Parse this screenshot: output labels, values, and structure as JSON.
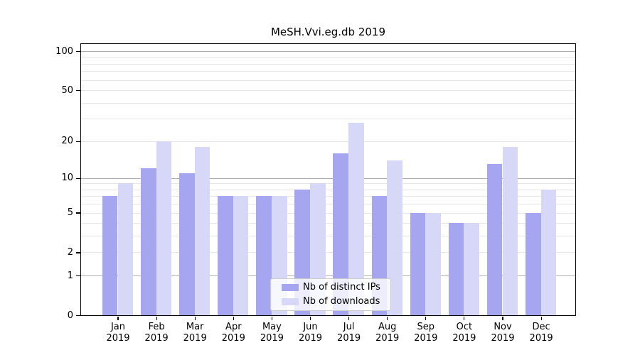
{
  "chart_data": {
    "type": "bar",
    "title": "MeSH.Vvi.eg.db 2019",
    "months": [
      "Jan",
      "Feb",
      "Mar",
      "Apr",
      "May",
      "Jun",
      "Jul",
      "Aug",
      "Sep",
      "Oct",
      "Nov",
      "Dec"
    ],
    "year": "2019",
    "series": [
      {
        "name": "Nb of distinct IPs",
        "color": "#a6a6f0",
        "values": [
          7,
          12,
          11,
          7,
          7,
          8,
          16,
          7,
          5,
          4,
          13,
          5
        ]
      },
      {
        "name": "Nb of downloads",
        "color": "#d7d7f8",
        "values": [
          9,
          20,
          18,
          7,
          7,
          9,
          28,
          14,
          5,
          4,
          18,
          8
        ]
      }
    ],
    "y_scale": "log1p",
    "y_ticks": [
      0,
      1,
      2,
      5,
      10,
      20,
      50,
      100
    ],
    "ylim": [
      0,
      114
    ],
    "grid": true,
    "legend_position": "bottom-center"
  },
  "colors": {
    "grid_major": "#b0b0b0",
    "grid_minor": "#e6e6e6",
    "spine": "#000000",
    "text": "#000000",
    "legend_border": "#cccccc"
  }
}
